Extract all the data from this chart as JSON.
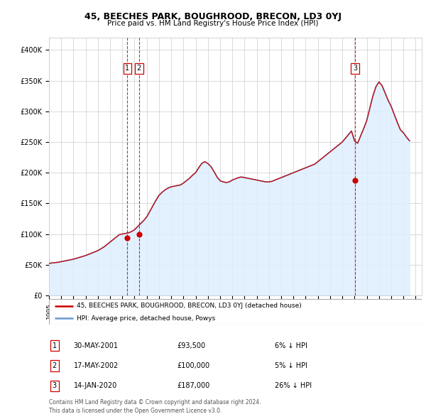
{
  "title": "45, BEECHES PARK, BOUGHROOD, BRECON, LD3 0YJ",
  "subtitle": "Price paid vs. HM Land Registry's House Price Index (HPI)",
  "ylim": [
    0,
    420000
  ],
  "yticks": [
    0,
    50000,
    100000,
    150000,
    200000,
    250000,
    300000,
    350000,
    400000
  ],
  "ytick_labels": [
    "£0",
    "£50K",
    "£100K",
    "£150K",
    "£200K",
    "£250K",
    "£300K",
    "£350K",
    "£400K"
  ],
  "xlim_start": 1995.0,
  "xlim_end": 2025.5,
  "grid_color": "#cccccc",
  "sale_color": "#cc0000",
  "hpi_color": "#6699cc",
  "hpi_fill_color": "#ddeeff",
  "sale_dates": [
    2001.41,
    2002.37,
    2020.04
  ],
  "sale_prices": [
    93500,
    100000,
    187000
  ],
  "annotation_labels": [
    "1",
    "2",
    "3"
  ],
  "annotation_dates": [
    2001.41,
    2002.37,
    2020.04
  ],
  "legend_sale_label": "45, BEECHES PARK, BOUGHROOD, BRECON, LD3 0YJ (detached house)",
  "legend_hpi_label": "HPI: Average price, detached house, Powys",
  "table_rows": [
    [
      "1",
      "30-MAY-2001",
      "£93,500",
      "6% ↓ HPI"
    ],
    [
      "2",
      "17-MAY-2002",
      "£100,000",
      "5% ↓ HPI"
    ],
    [
      "3",
      "14-JAN-2020",
      "£187,000",
      "26% ↓ HPI"
    ]
  ],
  "footer_text": "Contains HM Land Registry data © Crown copyright and database right 2024.\nThis data is licensed under the Open Government Licence v3.0.",
  "hpi_years": [
    1995.0,
    1995.25,
    1995.5,
    1995.75,
    1996.0,
    1996.25,
    1996.5,
    1996.75,
    1997.0,
    1997.25,
    1997.5,
    1997.75,
    1998.0,
    1998.25,
    1998.5,
    1998.75,
    1999.0,
    1999.25,
    1999.5,
    1999.75,
    2000.0,
    2000.25,
    2000.5,
    2000.75,
    2001.0,
    2001.25,
    2001.5,
    2001.75,
    2002.0,
    2002.25,
    2002.5,
    2002.75,
    2003.0,
    2003.25,
    2003.5,
    2003.75,
    2004.0,
    2004.25,
    2004.5,
    2004.75,
    2005.0,
    2005.25,
    2005.5,
    2005.75,
    2006.0,
    2006.25,
    2006.5,
    2006.75,
    2007.0,
    2007.25,
    2007.5,
    2007.75,
    2008.0,
    2008.25,
    2008.5,
    2008.75,
    2009.0,
    2009.25,
    2009.5,
    2009.75,
    2010.0,
    2010.25,
    2010.5,
    2010.75,
    2011.0,
    2011.25,
    2011.5,
    2011.75,
    2012.0,
    2012.25,
    2012.5,
    2012.75,
    2013.0,
    2013.25,
    2013.5,
    2013.75,
    2014.0,
    2014.25,
    2014.5,
    2014.75,
    2015.0,
    2015.25,
    2015.5,
    2015.75,
    2016.0,
    2016.25,
    2016.5,
    2016.75,
    2017.0,
    2017.25,
    2017.5,
    2017.75,
    2018.0,
    2018.25,
    2018.5,
    2018.75,
    2019.0,
    2019.25,
    2019.5,
    2019.75,
    2020.0,
    2020.25,
    2020.5,
    2020.75,
    2021.0,
    2021.25,
    2021.5,
    2021.75,
    2022.0,
    2022.25,
    2022.5,
    2022.75,
    2023.0,
    2023.25,
    2023.5,
    2023.75,
    2024.0,
    2024.25,
    2024.5
  ],
  "hpi_values": [
    52000,
    53000,
    53500,
    54000,
    55000,
    56000,
    57000,
    58000,
    59000,
    60500,
    62000,
    63500,
    65000,
    67000,
    69000,
    71000,
    73000,
    76000,
    79000,
    83000,
    87000,
    91000,
    95000,
    99000,
    100000,
    101000,
    102000,
    104000,
    107000,
    112000,
    117000,
    122000,
    128000,
    137000,
    146000,
    155000,
    163000,
    168000,
    172000,
    175000,
    177000,
    178000,
    179000,
    180000,
    183000,
    187000,
    191000,
    196000,
    200000,
    208000,
    215000,
    218000,
    215000,
    210000,
    202000,
    193000,
    187000,
    185000,
    184000,
    185000,
    188000,
    190000,
    192000,
    193000,
    192000,
    191000,
    190000,
    189000,
    188000,
    187000,
    186000,
    185000,
    185000,
    186000,
    188000,
    190000,
    192000,
    194000,
    196000,
    198000,
    200000,
    202000,
    204000,
    206000,
    208000,
    210000,
    212000,
    214000,
    218000,
    222000,
    226000,
    230000,
    234000,
    238000,
    242000,
    246000,
    250000,
    256000,
    262000,
    268000,
    252000,
    248000,
    260000,
    272000,
    285000,
    305000,
    325000,
    340000,
    348000,
    342000,
    330000,
    318000,
    308000,
    295000,
    282000,
    270000,
    265000,
    258000,
    252000
  ]
}
